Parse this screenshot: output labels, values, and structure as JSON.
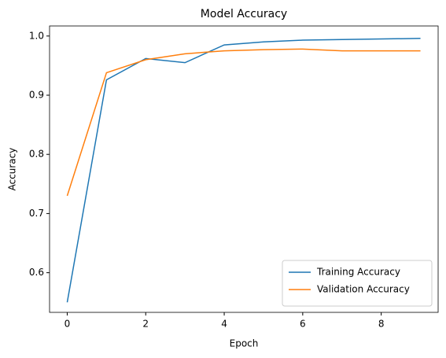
{
  "chart_data": {
    "type": "line",
    "title": "Model Accuracy",
    "x_label": "Epoch",
    "y_label": "Accuracy",
    "x": [
      0,
      1,
      2,
      3,
      4,
      5,
      6,
      7,
      8,
      9
    ],
    "series": [
      {
        "name": "Training Accuracy",
        "color": "#1f77b4",
        "values": [
          0.55,
          0.926,
          0.962,
          0.955,
          0.985,
          0.99,
          0.993,
          0.994,
          0.995,
          0.996
        ]
      },
      {
        "name": "Validation Accuracy",
        "color": "#ff7f0e",
        "values": [
          0.73,
          0.938,
          0.96,
          0.97,
          0.975,
          0.977,
          0.978,
          0.975,
          0.975,
          0.975
        ]
      }
    ],
    "xlim": [
      -0.45,
      9.45
    ],
    "ylim": [
      0.533,
      1.017
    ],
    "xticks": [
      0,
      2,
      4,
      6,
      8
    ],
    "yticks": [
      0.6,
      0.7,
      0.8,
      0.9,
      {
        "value": 1.0,
        "label": "1.0"
      }
    ],
    "legend": "lower right"
  }
}
